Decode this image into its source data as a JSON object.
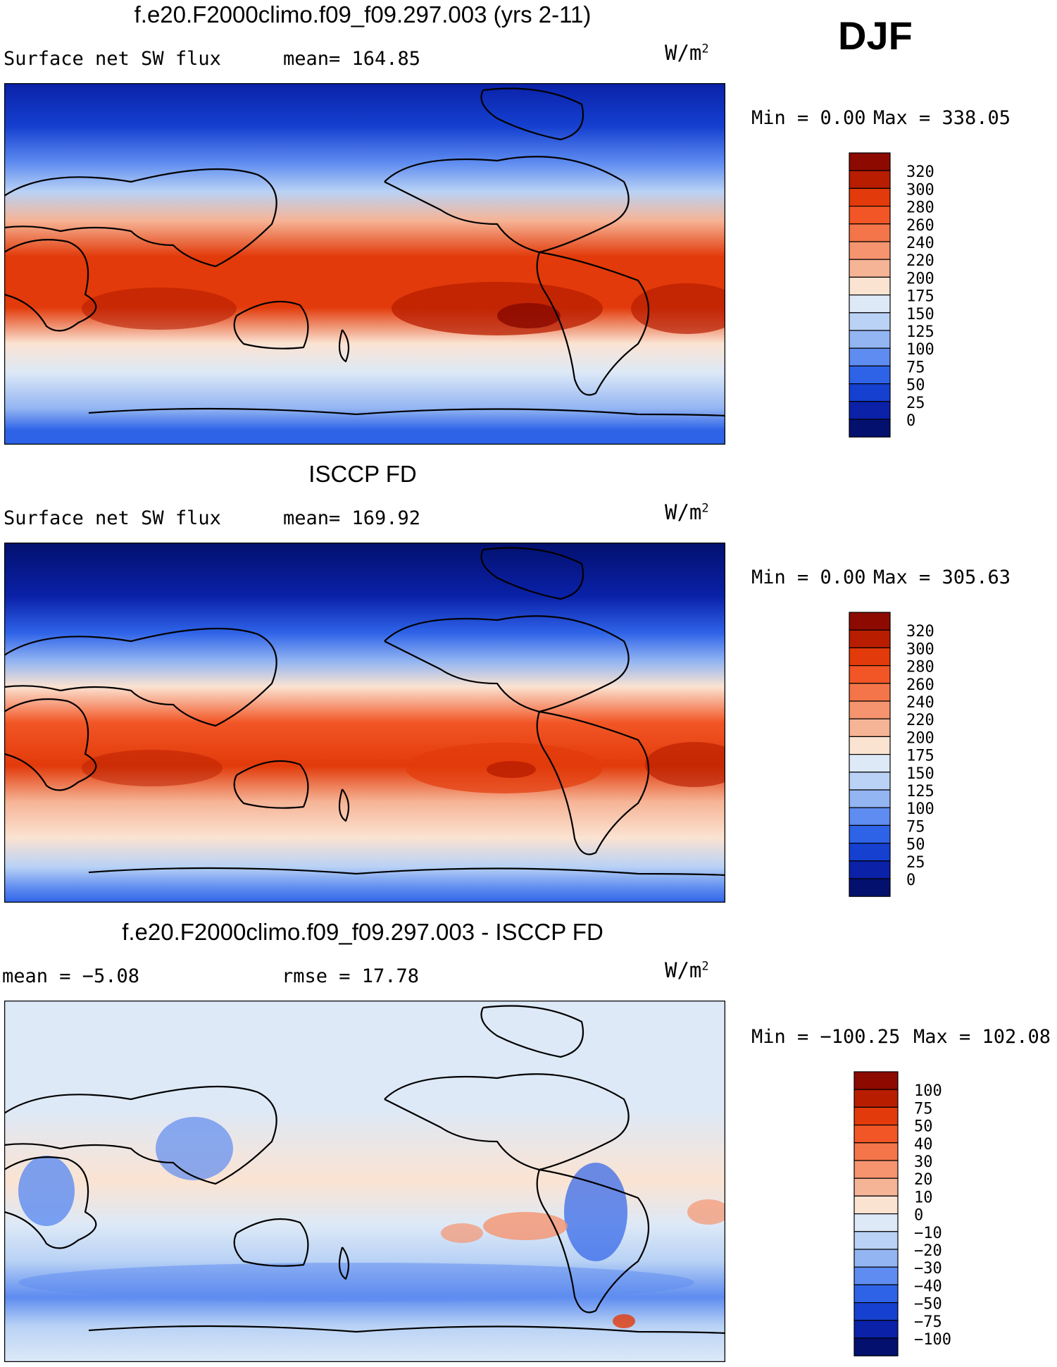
{
  "season": "DJF",
  "chart_data": [
    {
      "type": "heatmap",
      "title": "f.e20.F2000climo.f09_f09.297.003 (yrs 2-11)",
      "left_label": "Surface net SW flux",
      "mean_text": "mean= 164.85",
      "mean": 164.85,
      "units_base": "W/m",
      "units_exp": "2",
      "min_text": "Min =   0.00",
      "max_text": "Max = 338.05",
      "min": 0.0,
      "max": 338.05,
      "colorbar_labels": [
        "320",
        "300",
        "280",
        "260",
        "240",
        "220",
        "200",
        "175",
        "150",
        "125",
        "100",
        "75",
        "50",
        "25",
        "0"
      ],
      "colorbar_colors": [
        "#8c0a00",
        "#b81d00",
        "#e23a0a",
        "#f25626",
        "#f47549",
        "#f5946f",
        "#f6b496",
        "#fbe3d2",
        "#dde9f7",
        "#b9d2f5",
        "#93b5f2",
        "#5e8cf0",
        "#2e63e8",
        "#1540d0",
        "#0a21a8",
        "#03106e"
      ],
      "x_range": [
        0,
        360
      ],
      "y_range": [
        -90,
        90
      ]
    },
    {
      "type": "heatmap",
      "title": "ISCCP FD",
      "left_label": "Surface net SW flux",
      "mean_text": "mean= 169.92",
      "mean": 169.92,
      "units_base": "W/m",
      "units_exp": "2",
      "min_text": "Min =   0.00",
      "max_text": "Max = 305.63",
      "min": 0.0,
      "max": 305.63,
      "colorbar_labels": [
        "320",
        "300",
        "280",
        "260",
        "240",
        "220",
        "200",
        "175",
        "150",
        "125",
        "100",
        "75",
        "50",
        "25",
        "0"
      ],
      "colorbar_colors": [
        "#8c0a00",
        "#b81d00",
        "#e23a0a",
        "#f25626",
        "#f47549",
        "#f5946f",
        "#f6b496",
        "#fbe3d2",
        "#dde9f7",
        "#b9d2f5",
        "#93b5f2",
        "#5e8cf0",
        "#2e63e8",
        "#1540d0",
        "#0a21a8",
        "#03106e"
      ],
      "x_range": [
        0,
        360
      ],
      "y_range": [
        -90,
        90
      ]
    },
    {
      "type": "heatmap",
      "title": "f.e20.F2000climo.f09_f09.297.003 - ISCCP FD",
      "left_label": "mean =   −5.08",
      "mean": -5.08,
      "mean_text": "rmse =   17.78",
      "rmse": 17.78,
      "units_base": "W/m",
      "units_exp": "2",
      "min_text": "Min = −100.25",
      "max_text": "Max = 102.08",
      "min": -100.25,
      "max": 102.08,
      "colorbar_labels": [
        "100",
        "75",
        "50",
        "40",
        "30",
        "20",
        "10",
        "0",
        "−10",
        "−20",
        "−30",
        "−40",
        "−50",
        "−75",
        "−100"
      ],
      "colorbar_colors": [
        "#8c0a00",
        "#b81d00",
        "#e23a0a",
        "#f25626",
        "#f47549",
        "#f5946f",
        "#f6b496",
        "#fbe3d2",
        "#dde9f7",
        "#b9d2f5",
        "#93b5f2",
        "#5e8cf0",
        "#2e63e8",
        "#1540d0",
        "#0a21a8",
        "#03106e"
      ],
      "x_range": [
        0,
        360
      ],
      "y_range": [
        -90,
        90
      ]
    }
  ]
}
